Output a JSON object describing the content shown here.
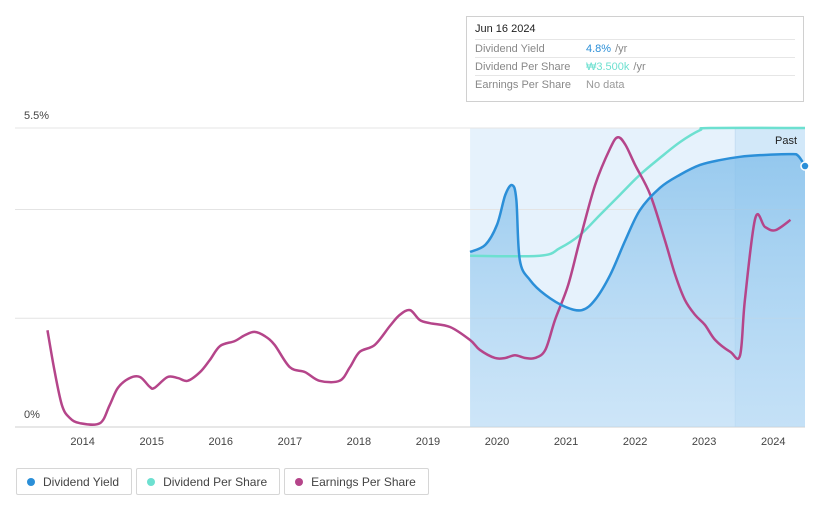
{
  "chart_data": {
    "type": "line",
    "xlim": [
      2013.02,
      2024.46
    ],
    "xticks": [
      2014,
      2015,
      2016,
      2017,
      2018,
      2019,
      2020,
      2021,
      2022,
      2023,
      2024
    ],
    "ylim": [
      0,
      5.5
    ],
    "yticks": [
      {
        "value": 0,
        "label": "0%"
      },
      {
        "value": 2,
        "label": null
      },
      {
        "value": 4,
        "label": null
      },
      {
        "value": 5.5,
        "label": "5.5%"
      }
    ],
    "grid": true,
    "past_region": {
      "label": "Past",
      "start": 2023.45
    },
    "series": [
      {
        "name": "Dividend Yield",
        "color": "#2b8fd8",
        "x": [
          2019.61,
          2019.83,
          2020.0,
          2020.12,
          2020.22,
          2020.28,
          2020.33,
          2020.48,
          2020.7,
          2020.99,
          2021.23,
          2021.42,
          2021.64,
          2021.86,
          2022.07,
          2022.36,
          2022.65,
          2022.94,
          2023.23,
          2023.52,
          2023.81,
          2024.25,
          2024.36,
          2024.46
        ],
        "values": [
          3.22,
          3.35,
          3.72,
          4.27,
          4.45,
          4.18,
          3.07,
          2.7,
          2.43,
          2.21,
          2.15,
          2.34,
          2.8,
          3.44,
          3.99,
          4.4,
          4.64,
          4.82,
          4.91,
          4.97,
          5.0,
          5.02,
          4.99,
          4.8
        ]
      },
      {
        "name": "Dividend Per Share",
        "color": "#6de0d0",
        "x": [
          2019.61,
          2020.62,
          2020.91,
          2021.2,
          2021.49,
          2021.78,
          2022.07,
          2022.36,
          2022.65,
          2022.94,
          2023.09,
          2024.46
        ],
        "values": [
          3.15,
          3.15,
          3.29,
          3.53,
          3.9,
          4.27,
          4.64,
          4.95,
          5.24,
          5.46,
          5.5,
          5.5
        ]
      },
      {
        "name": "Earnings Per Share",
        "color": "#b5458a",
        "x": [
          2013.49,
          2013.59,
          2013.7,
          2013.81,
          2013.96,
          2014.25,
          2014.39,
          2014.51,
          2014.68,
          2014.83,
          2014.97,
          2015.04,
          2015.23,
          2015.38,
          2015.52,
          2015.7,
          2015.84,
          2015.99,
          2016.2,
          2016.35,
          2016.49,
          2016.64,
          2016.78,
          2017.0,
          2017.22,
          2017.43,
          2017.72,
          2017.87,
          2018.01,
          2018.23,
          2018.45,
          2018.59,
          2018.74,
          2018.88,
          2019.03,
          2019.32,
          2019.61,
          2019.75,
          2019.97,
          2020.12,
          2020.26,
          2020.41,
          2020.55,
          2020.7,
          2020.84,
          2021.03,
          2021.2,
          2021.42,
          2021.64,
          2021.75,
          2021.86,
          2022.0,
          2022.22,
          2022.43,
          2022.58,
          2022.72,
          2022.87,
          2023.01,
          2023.16,
          2023.38,
          2023.52,
          2023.59,
          2023.74,
          2023.88,
          2024.03,
          2024.25
        ],
        "values": [
          1.78,
          1.05,
          0.4,
          0.17,
          0.07,
          0.07,
          0.4,
          0.72,
          0.9,
          0.92,
          0.74,
          0.72,
          0.92,
          0.9,
          0.85,
          1.01,
          1.23,
          1.49,
          1.58,
          1.69,
          1.75,
          1.67,
          1.51,
          1.1,
          1.01,
          0.85,
          0.85,
          1.1,
          1.38,
          1.51,
          1.86,
          2.06,
          2.15,
          1.97,
          1.91,
          1.84,
          1.6,
          1.42,
          1.27,
          1.27,
          1.32,
          1.27,
          1.27,
          1.42,
          1.97,
          2.61,
          3.44,
          4.45,
          5.13,
          5.33,
          5.19,
          4.82,
          4.27,
          3.44,
          2.8,
          2.34,
          2.06,
          1.88,
          1.6,
          1.38,
          1.32,
          2.34,
          3.84,
          3.68,
          3.62,
          3.81
        ]
      }
    ]
  },
  "tooltip": {
    "date": "Jun 16 2024",
    "rows": [
      {
        "label": "Dividend Yield",
        "value": "4.8%",
        "unit": "/yr"
      },
      {
        "label": "Dividend Per Share",
        "value": "₩3.500k",
        "unit": "/yr"
      },
      {
        "label": "Earnings Per Share",
        "value": "No data"
      }
    ]
  }
}
